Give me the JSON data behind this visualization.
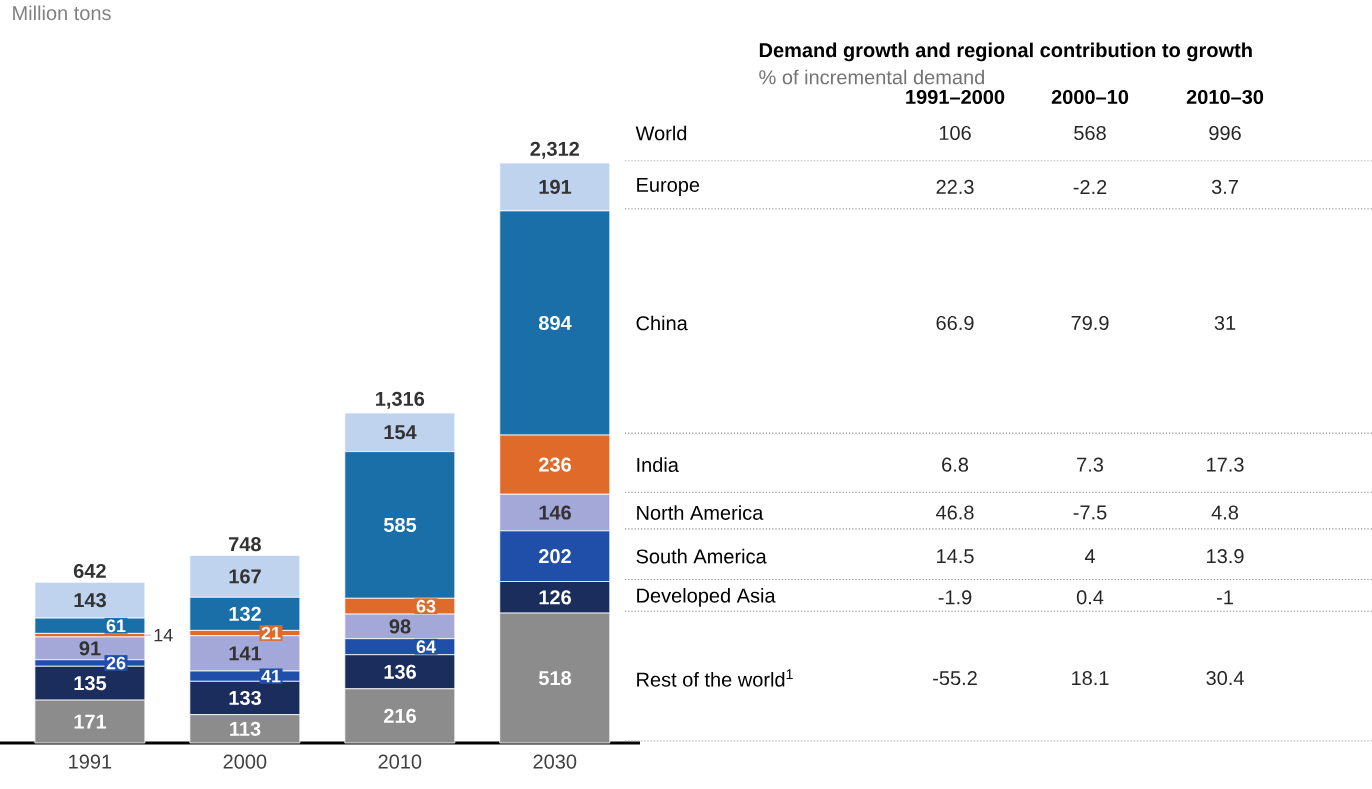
{
  "chart_data": [
    {
      "type": "bar",
      "title": "Million tons",
      "categories": [
        "1991",
        "2000",
        "2010",
        "2030"
      ],
      "stacked": true,
      "data_labels": true,
      "totals": [
        "642",
        "748",
        "1,316",
        "2,312"
      ],
      "series": [
        {
          "color": "#8c8c8c",
          "values": [
            171,
            113,
            216,
            518
          ]
        },
        {
          "color": "#1b2d5c",
          "values": [
            135,
            133,
            136,
            126
          ]
        },
        {
          "color": "#1f4fa8",
          "values": [
            26,
            41,
            64,
            202
          ]
        },
        {
          "color": "#a3a8d8",
          "values": [
            91,
            141,
            98,
            146
          ]
        },
        {
          "color": "#e06a2a",
          "values": [
            14,
            21,
            63,
            236
          ]
        },
        {
          "color": "#1a6fa8",
          "values": [
            61,
            132,
            585,
            894
          ]
        },
        {
          "color": "#bfd2ee",
          "values": [
            143,
            167,
            154,
            191
          ]
        }
      ]
    },
    {
      "type": "other",
      "title": "Demand growth and regional contribution to growth",
      "subtitle": "% of incremental demand",
      "categories": [
        "1991–2000",
        "2000–10",
        "2010–30"
      ],
      "y_categories": [
        "World",
        "Europe",
        "China",
        "India",
        "North America",
        "South America",
        "Developed Asia",
        "Rest of the world$^{1}$"
      ],
      "cell_labels": [
        [
          "106",
          "568",
          "996"
        ],
        [
          "22.3",
          "-2.2",
          "3.7"
        ],
        [
          "66.9",
          "79.9",
          "31"
        ],
        [
          "6.8",
          "7.3",
          "17.3"
        ],
        [
          "46.8",
          "-7.5",
          "4.8"
        ],
        [
          "14.5",
          "4",
          "13.9"
        ],
        [
          "-1.9",
          "0.4",
          "-1"
        ],
        [
          "-55.2",
          "18.1",
          "30.4"
        ]
      ]
    }
  ]
}
